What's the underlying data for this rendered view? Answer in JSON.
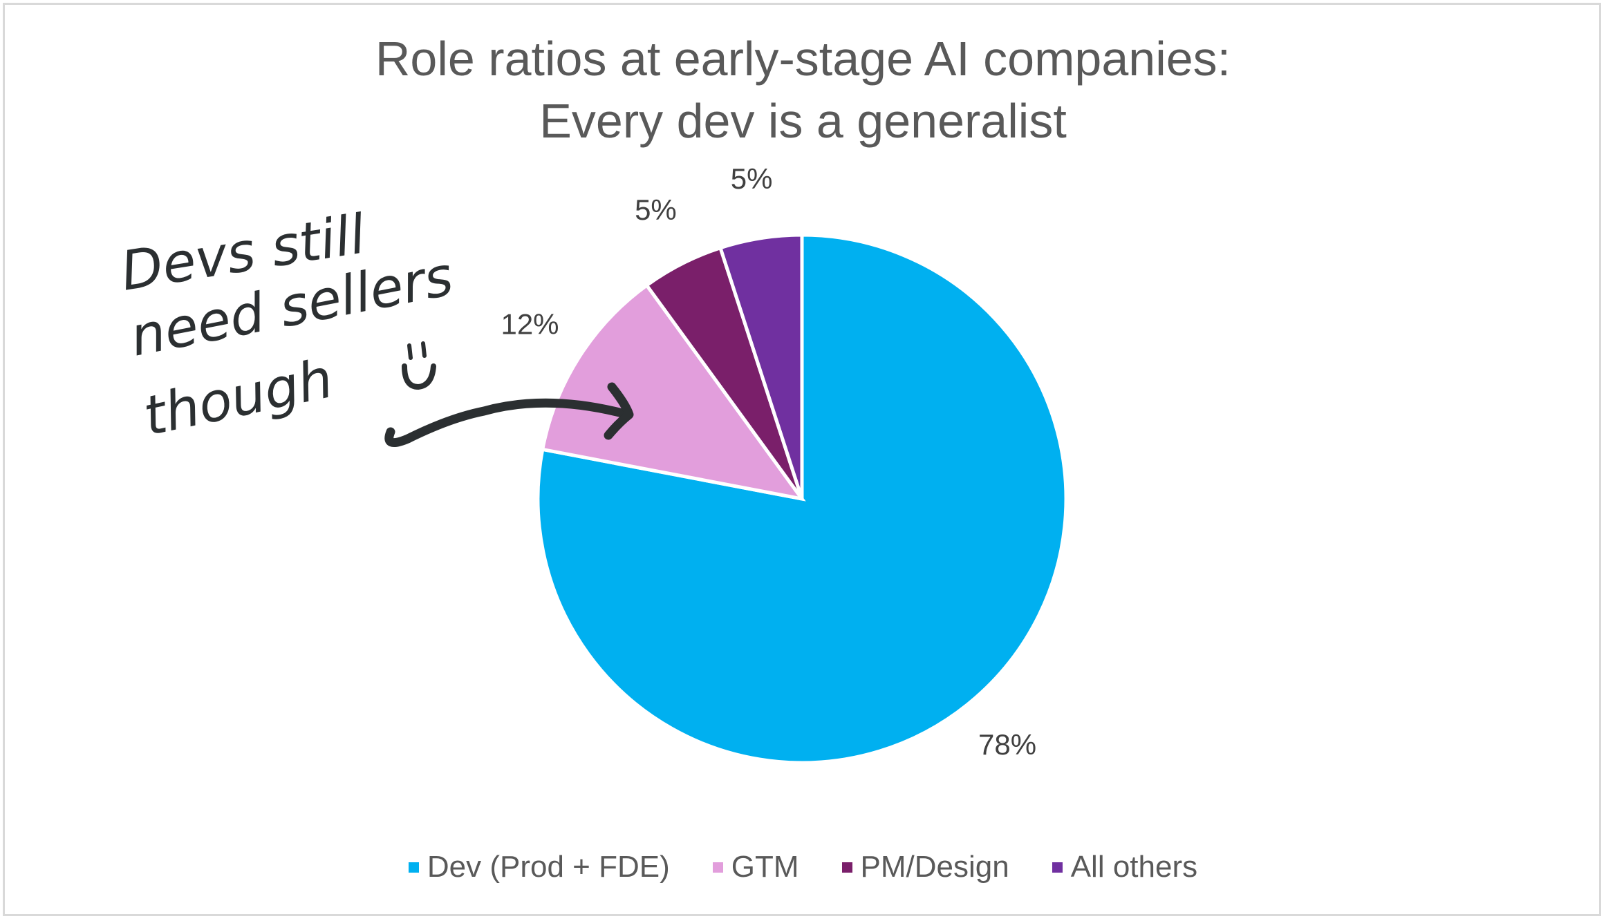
{
  "chart_data": {
    "type": "pie",
    "title": [
      "Role ratios at early-stage AI companies:",
      "Every dev is a generalist"
    ],
    "start_angle": "12 o'clock, clockwise",
    "slices": [
      {
        "label": "Dev (Prod + FDE)",
        "value": 78,
        "data_label": "78%",
        "color": "#00b0f0"
      },
      {
        "label": "GTM",
        "value": 12,
        "data_label": "12%",
        "color": "#e29edc"
      },
      {
        "label": "PM/Design",
        "value": 5,
        "data_label": "5%",
        "color": "#7a1f6a"
      },
      {
        "label": "All others",
        "value": 5,
        "data_label": "5%",
        "color": "#7030a0"
      }
    ],
    "legend_position": "bottom",
    "annotation": {
      "lines": [
        "Devs still",
        "need sellers",
        "though"
      ],
      "smiley": "̮̈◡",
      "points_to": "GTM"
    }
  }
}
